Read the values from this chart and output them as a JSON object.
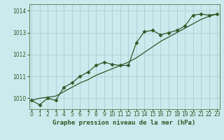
{
  "title": "Graphe pression niveau de la mer (hPa)",
  "bg_color": "#cce9ed",
  "grid_color": "#b0d0d8",
  "line_color": "#2d5a27",
  "x_hours": [
    0,
    1,
    2,
    3,
    4,
    5,
    6,
    7,
    8,
    9,
    10,
    11,
    12,
    13,
    14,
    15,
    16,
    17,
    18,
    19,
    20,
    21,
    22,
    23
  ],
  "y_hourly": [
    1009.9,
    1009.7,
    1010.0,
    1009.9,
    1010.5,
    1010.7,
    1011.0,
    1011.2,
    1011.5,
    1011.65,
    1011.55,
    1011.5,
    1011.5,
    1012.55,
    1013.05,
    1013.1,
    1012.9,
    1013.0,
    1013.1,
    1013.3,
    1013.8,
    1013.85,
    1013.8,
    1013.85
  ],
  "y_smooth": [
    1009.9,
    1010.0,
    1010.05,
    1010.1,
    1010.3,
    1010.5,
    1010.7,
    1010.85,
    1011.05,
    1011.2,
    1011.35,
    1011.5,
    1011.65,
    1011.85,
    1012.1,
    1012.35,
    1012.6,
    1012.8,
    1013.0,
    1013.2,
    1013.4,
    1013.6,
    1013.75,
    1013.85
  ],
  "ylim": [
    1009.5,
    1014.3
  ],
  "yticks": [
    1010,
    1011,
    1012,
    1013,
    1014
  ],
  "xlim": [
    -0.3,
    23.3
  ],
  "xticks": [
    0,
    1,
    2,
    3,
    4,
    5,
    6,
    7,
    8,
    9,
    10,
    11,
    12,
    13,
    14,
    15,
    16,
    17,
    18,
    19,
    20,
    21,
    22,
    23
  ],
  "marker": "D",
  "marker_size": 2.5
}
